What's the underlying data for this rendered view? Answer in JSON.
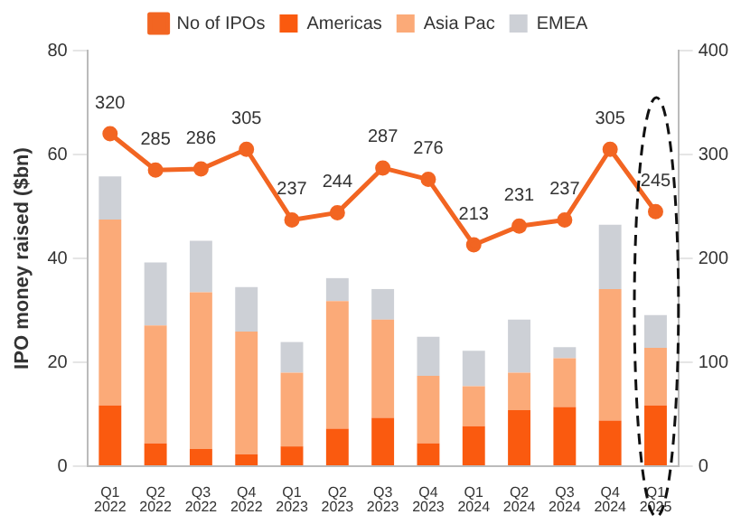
{
  "chart_data": {
    "type": "bar",
    "stacked": true,
    "ylabel": "IPO money raised ($bn)",
    "legend": "top",
    "categories": [
      "Q1 2022",
      "Q2 2022",
      "Q3 2022",
      "Q4 2022",
      "Q1 2023",
      "Q2 2023",
      "Q3 2023",
      "Q4 2023",
      "Q1 2024",
      "Q2 2024",
      "Q3 2024",
      "Q4 2024",
      "Q1 2025"
    ],
    "series": [
      {
        "name": "Americas",
        "color": "#fa5a0f",
        "values": [
          11.7,
          4.4,
          3.3,
          2.3,
          3.8,
          7.2,
          9.3,
          4.4,
          7.7,
          10.8,
          11.4,
          8.8,
          11.7
        ]
      },
      {
        "name": "Asia Pac",
        "color": "#fbaa78",
        "values": [
          35.8,
          22.7,
          30.2,
          23.6,
          14.2,
          24.6,
          18.9,
          13.0,
          7.7,
          7.2,
          9.4,
          25.3,
          11.1
        ]
      },
      {
        "name": "EMEA",
        "color": "#cdd0d6",
        "values": [
          8.3,
          12.1,
          9.9,
          8.6,
          5.9,
          4.4,
          5.9,
          7.5,
          6.8,
          10.2,
          2.1,
          12.4,
          6.3
        ]
      },
      {
        "name": "No of IPOs",
        "type": "line",
        "axis": "y2",
        "color": "#f26522",
        "marker": "circle",
        "values": [
          320,
          285,
          286,
          305,
          237,
          244,
          287,
          276,
          213,
          231,
          237,
          305,
          245
        ],
        "value_labels": [
          "320",
          "285",
          "286",
          "305",
          "237",
          "244",
          "287",
          "276",
          "213",
          "231",
          "237",
          "305",
          "245"
        ]
      }
    ],
    "ylim": [
      0,
      80
    ],
    "yticks": [
      0,
      20,
      40,
      60,
      80
    ],
    "y2lim": [
      0,
      400
    ],
    "y2ticks": [
      0,
      100,
      200,
      300,
      400
    ],
    "grid": false
  }
}
